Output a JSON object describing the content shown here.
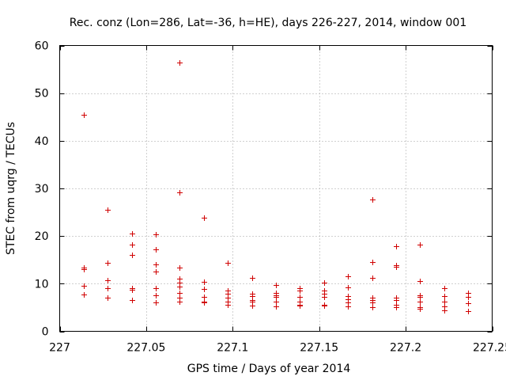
{
  "chart_data": {
    "type": "scatter",
    "title": "Rec. conz (Lon=286, Lat=-36, h=HE), days 226-227, 2014, window 001",
    "xlabel": "GPS time / Days of year 2014",
    "ylabel": "STEC from uqrg / TECUs",
    "xlim": [
      227,
      227.25
    ],
    "ylim": [
      0,
      60
    ],
    "xticks": [
      227,
      227.05,
      227.1,
      227.15,
      227.2,
      227.25
    ],
    "yticks": [
      0,
      10,
      20,
      30,
      40,
      50,
      60
    ],
    "xtick_labels": [
      "227",
      "227.05",
      "227.1",
      "227.15",
      "227.2",
      "227.25"
    ],
    "ytick_labels": [
      "0",
      "10",
      "20",
      "30",
      "40",
      "50",
      "60"
    ],
    "grid": true,
    "marker": "+",
    "color": "#d00000",
    "series": [
      {
        "name": "STEC",
        "points": [
          [
            227.0139,
            45.4
          ],
          [
            227.0139,
            13.3
          ],
          [
            227.0139,
            13.0
          ],
          [
            227.0139,
            9.6
          ],
          [
            227.0139,
            7.8
          ],
          [
            227.0278,
            25.5
          ],
          [
            227.0278,
            14.3
          ],
          [
            227.0278,
            10.7
          ],
          [
            227.0278,
            9.0
          ],
          [
            227.0278,
            7.0
          ],
          [
            227.0417,
            20.5
          ],
          [
            227.0417,
            18.2
          ],
          [
            227.0417,
            16.0
          ],
          [
            227.0417,
            9.0
          ],
          [
            227.0417,
            8.8
          ],
          [
            227.0417,
            6.5
          ],
          [
            227.0556,
            20.3
          ],
          [
            227.0556,
            17.2
          ],
          [
            227.0556,
            14.0
          ],
          [
            227.0556,
            12.5
          ],
          [
            227.0556,
            9.0
          ],
          [
            227.0556,
            7.6
          ],
          [
            227.0556,
            6.1
          ],
          [
            227.0694,
            56.4
          ],
          [
            227.0694,
            29.2
          ],
          [
            227.0694,
            13.3
          ],
          [
            227.0694,
            11.0
          ],
          [
            227.0694,
            10.2
          ],
          [
            227.0694,
            9.4
          ],
          [
            227.0694,
            8.0
          ],
          [
            227.0694,
            7.0
          ],
          [
            227.0694,
            6.2
          ],
          [
            227.0833,
            23.9
          ],
          [
            227.0833,
            10.4
          ],
          [
            227.0833,
            8.9
          ],
          [
            227.0833,
            7.3
          ],
          [
            227.0833,
            6.3
          ],
          [
            227.0833,
            6.0
          ],
          [
            227.0972,
            14.3
          ],
          [
            227.0972,
            8.6
          ],
          [
            227.0972,
            7.9
          ],
          [
            227.0972,
            7.0
          ],
          [
            227.0972,
            6.3
          ],
          [
            227.0972,
            5.6
          ],
          [
            227.1111,
            11.3
          ],
          [
            227.1111,
            7.9
          ],
          [
            227.1111,
            7.4
          ],
          [
            227.1111,
            6.5
          ],
          [
            227.1111,
            6.2
          ],
          [
            227.1111,
            5.4
          ],
          [
            227.125,
            9.8
          ],
          [
            227.125,
            8.1
          ],
          [
            227.125,
            7.5
          ],
          [
            227.125,
            7.2
          ],
          [
            227.125,
            6.3
          ],
          [
            227.125,
            5.3
          ],
          [
            227.1389,
            9.0
          ],
          [
            227.1389,
            8.6
          ],
          [
            227.1389,
            7.2
          ],
          [
            227.1389,
            6.3
          ],
          [
            227.1389,
            5.6
          ],
          [
            227.1389,
            5.4
          ],
          [
            227.1528,
            10.2
          ],
          [
            227.1528,
            8.6
          ],
          [
            227.1528,
            7.9
          ],
          [
            227.1528,
            7.3
          ],
          [
            227.1528,
            5.6
          ],
          [
            227.1528,
            5.4
          ],
          [
            227.1667,
            11.6
          ],
          [
            227.1667,
            9.2
          ],
          [
            227.1667,
            7.4
          ],
          [
            227.1667,
            6.8
          ],
          [
            227.1667,
            6.1
          ],
          [
            227.1667,
            5.2
          ],
          [
            227.1806,
            27.6
          ],
          [
            227.1806,
            14.6
          ],
          [
            227.1806,
            11.3
          ],
          [
            227.1806,
            7.1
          ],
          [
            227.1806,
            6.6
          ],
          [
            227.1806,
            6.1
          ],
          [
            227.1806,
            5.1
          ],
          [
            227.1944,
            17.9
          ],
          [
            227.1944,
            13.9
          ],
          [
            227.1944,
            13.6
          ],
          [
            227.1944,
            7.0
          ],
          [
            227.1944,
            6.6
          ],
          [
            227.1944,
            5.5
          ],
          [
            227.1944,
            5.0
          ],
          [
            227.2083,
            18.2
          ],
          [
            227.2083,
            10.6
          ],
          [
            227.2083,
            7.6
          ],
          [
            227.2083,
            7.2
          ],
          [
            227.2083,
            6.3
          ],
          [
            227.2083,
            5.0
          ],
          [
            227.2083,
            4.8
          ],
          [
            227.2222,
            9.1
          ],
          [
            227.2222,
            7.4
          ],
          [
            227.2222,
            6.3
          ],
          [
            227.2222,
            5.3
          ],
          [
            227.2222,
            4.4
          ],
          [
            227.2361,
            8.1
          ],
          [
            227.2361,
            7.3
          ],
          [
            227.2361,
            5.9
          ],
          [
            227.2361,
            4.3
          ]
        ]
      }
    ]
  }
}
